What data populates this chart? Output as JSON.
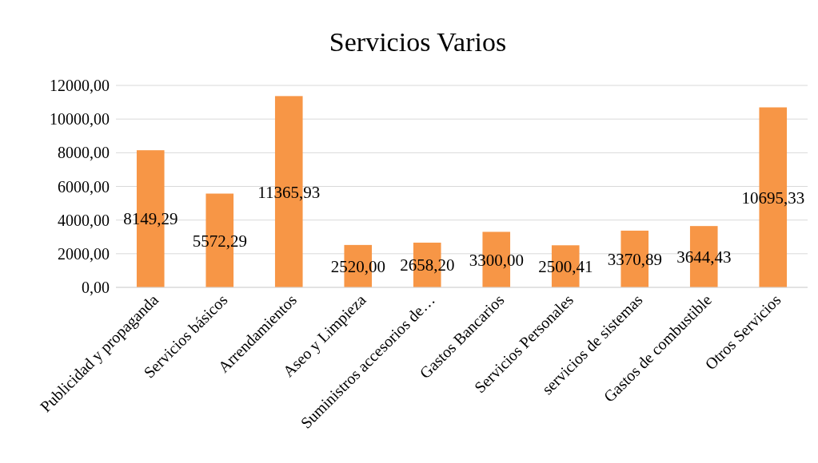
{
  "chart_data": {
    "type": "bar",
    "title": "Servicios Varios",
    "categories": [
      "Publicidad y propaganda",
      "Servicios básicos",
      "Arrendamientos",
      "Aseo y Limpieza",
      "Suministros accesorios de…",
      "Gastos Bancarios",
      "Servicios Personales",
      "servicios de sistemas",
      "Gastos de combustible",
      "Otros Servicios"
    ],
    "values": [
      8149.29,
      5572.29,
      11365.93,
      2520.0,
      2658.2,
      3300.0,
      2500.41,
      3370.89,
      3644.43,
      10695.33
    ],
    "value_labels": [
      "8149,29",
      "5572,29",
      "11365,93",
      "2520,00",
      "2658,20",
      "3300,00",
      "2500,41",
      "3370,89",
      "3644,43",
      "10695,33"
    ],
    "color": "#f79646",
    "ylim": [
      0,
      12000
    ],
    "yticks": [
      {
        "value": 0,
        "label": "0,00"
      },
      {
        "value": 2000,
        "label": "2000,00"
      },
      {
        "value": 4000,
        "label": "4000,00"
      },
      {
        "value": 6000,
        "label": "6000,00"
      },
      {
        "value": 8000,
        "label": "8000,00"
      },
      {
        "value": 10000,
        "label": "10000,00"
      },
      {
        "value": 12000,
        "label": "12000,00"
      }
    ],
    "grid": "y"
  }
}
